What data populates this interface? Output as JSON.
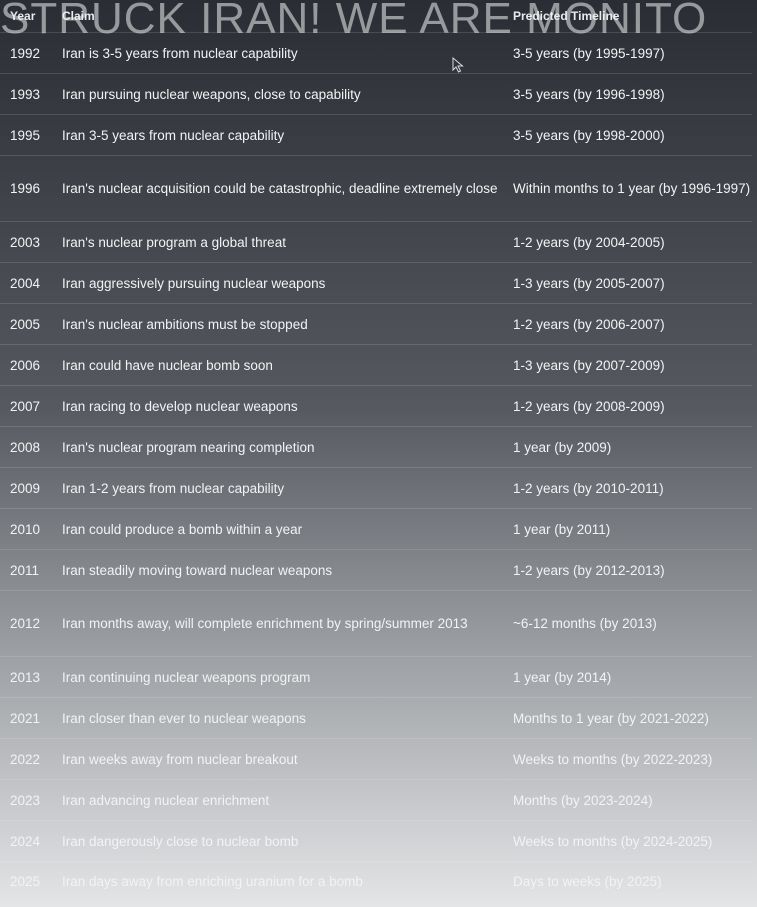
{
  "overlay": {
    "text": "STRUCK IRAN! WE ARE MONITO"
  },
  "table": {
    "headers": {
      "year": "Year",
      "claim": "Claim",
      "timeline": "Predicted Timeline"
    },
    "rows": [
      {
        "year": "1992",
        "claim": "Iran is 3-5 years from nuclear capability",
        "timeline": "3-5 years (by 1995-1997)"
      },
      {
        "year": "1993",
        "claim": "Iran pursuing nuclear weapons, close to capability",
        "timeline": "3-5 years (by 1996-1998)"
      },
      {
        "year": "1995",
        "claim": "Iran 3-5 years from nuclear capability",
        "timeline": "3-5 years (by 1998-2000)"
      },
      {
        "year": "1996",
        "claim": "Iran's nuclear acquisition could be catastrophic, deadline extremely close",
        "timeline": "Within months to 1 year (by 1996-1997)"
      },
      {
        "year": "2003",
        "claim": "Iran's nuclear program a global threat",
        "timeline": "1-2 years (by 2004-2005)"
      },
      {
        "year": "2004",
        "claim": "Iran aggressively pursuing nuclear weapons",
        "timeline": "1-3 years (by 2005-2007)"
      },
      {
        "year": "2005",
        "claim": "Iran's nuclear ambitions must be stopped",
        "timeline": "1-2 years (by 2006-2007)"
      },
      {
        "year": "2006",
        "claim": "Iran could have nuclear bomb soon",
        "timeline": "1-3 years (by 2007-2009)"
      },
      {
        "year": "2007",
        "claim": "Iran racing to develop nuclear weapons",
        "timeline": "1-2 years (by 2008-2009)"
      },
      {
        "year": "2008",
        "claim": "Iran's nuclear program nearing completion",
        "timeline": "1 year (by 2009)"
      },
      {
        "year": "2009",
        "claim": "Iran 1-2 years from nuclear capability",
        "timeline": "1-2 years (by 2010-2011)"
      },
      {
        "year": "2010",
        "claim": "Iran could produce a bomb within a year",
        "timeline": "1 year (by 2011)"
      },
      {
        "year": "2011",
        "claim": "Iran steadily moving toward nuclear weapons",
        "timeline": "1-2 years (by 2012-2013)"
      },
      {
        "year": "2012",
        "claim": "Iran months away, will complete enrichment by spring/summer 2013",
        "timeline": "~6-12 months (by 2013)"
      },
      {
        "year": "2013",
        "claim": "Iran continuing nuclear weapons program",
        "timeline": "1 year (by 2014)"
      },
      {
        "year": "2021",
        "claim": "Iran closer than ever to nuclear weapons",
        "timeline": "Months to 1 year (by 2021-2022)"
      },
      {
        "year": "2022",
        "claim": "Iran weeks away from nuclear breakout",
        "timeline": "Weeks to months (by 2022-2023)"
      },
      {
        "year": "2023",
        "claim": "Iran advancing nuclear enrichment",
        "timeline": "Months (by 2023-2024)"
      },
      {
        "year": "2024",
        "claim": "Iran dangerously close to nuclear bomb",
        "timeline": "Weeks to months (by 2024-2025)"
      },
      {
        "year": "2025",
        "claim": "Iran days away from enriching uranium for a bomb",
        "timeline": "Days to weeks (by 2025)"
      }
    ]
  },
  "icons": {
    "cursor": "mouse-pointer-icon"
  }
}
